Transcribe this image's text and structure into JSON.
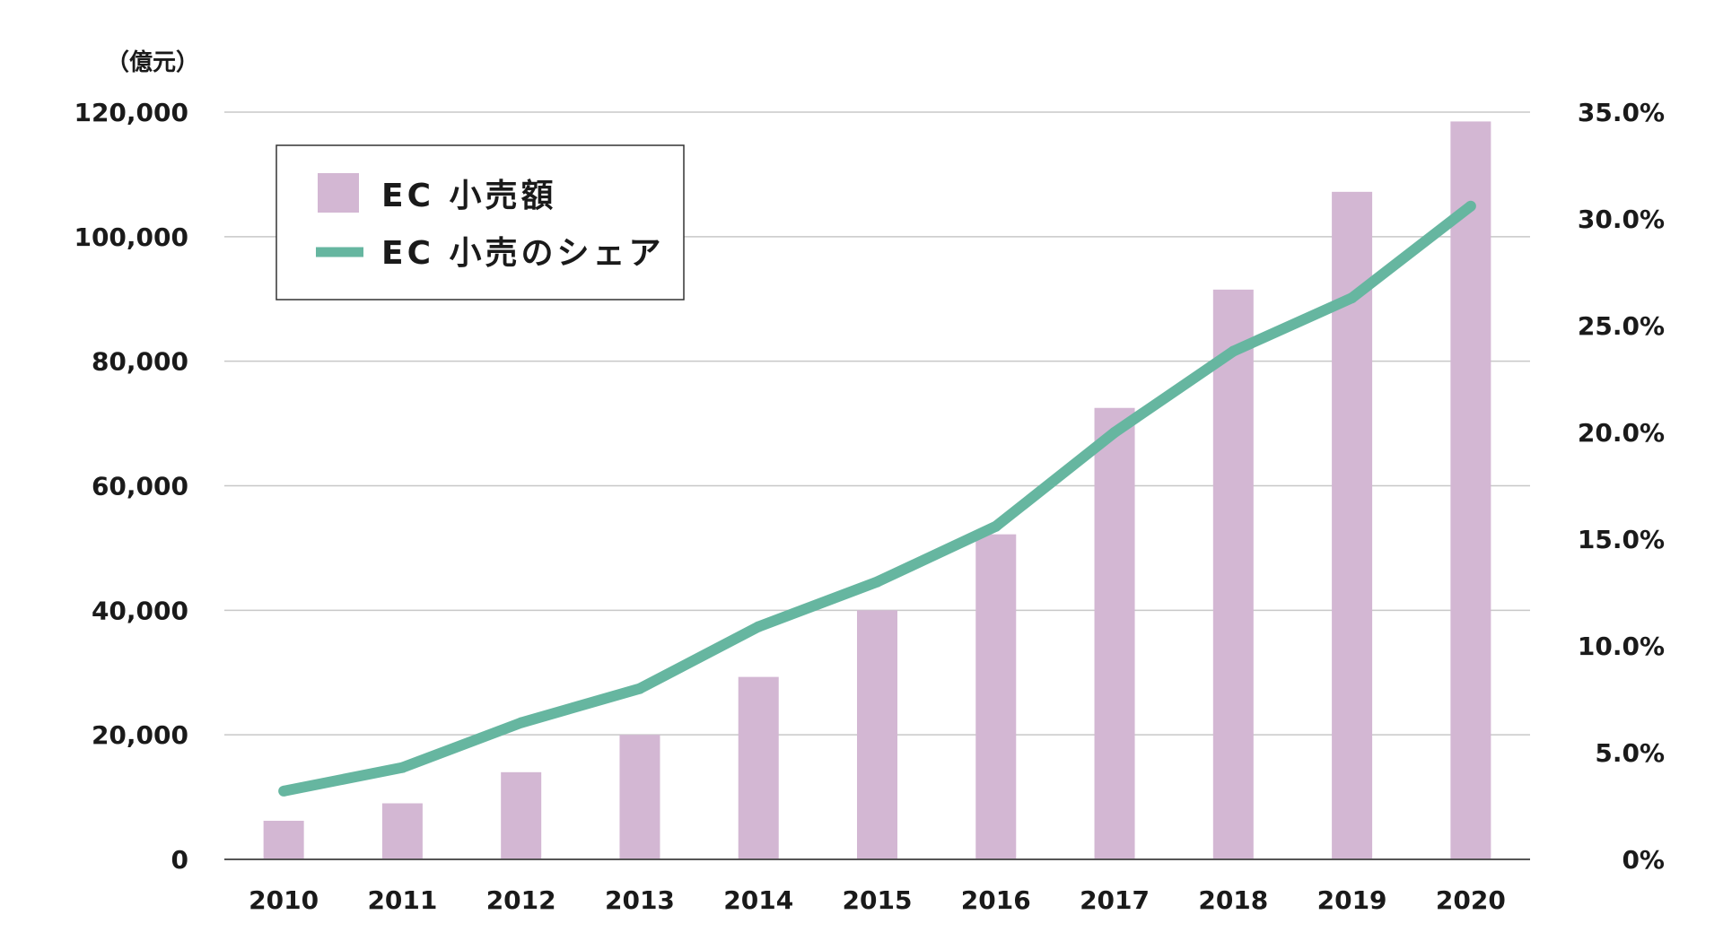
{
  "chart_data": {
    "type": "bar",
    "title": "",
    "xlabel": "",
    "ylabel_left_unit": "（億元）",
    "categories": [
      "2010",
      "2011",
      "2012",
      "2013",
      "2014",
      "2015",
      "2016",
      "2017",
      "2018",
      "2019",
      "2020"
    ],
    "series": [
      {
        "name": "EC 小売額",
        "type": "bar",
        "axis": "left",
        "values": [
          6200,
          9000,
          14000,
          20000,
          29300,
          40000,
          52200,
          72500,
          91500,
          107200,
          118500
        ]
      },
      {
        "name": "EC 小売のシェア",
        "type": "line",
        "axis": "right",
        "values": [
          3.2,
          4.3,
          6.4,
          8.0,
          10.9,
          13.0,
          15.6,
          20.0,
          23.8,
          26.3,
          30.6
        ]
      }
    ],
    "y_left": {
      "min": 0,
      "max": 120000,
      "ticks": [
        "0",
        "20,000",
        "40,000",
        "60,000",
        "80,000",
        "100,000",
        "120,000"
      ]
    },
    "y_right": {
      "min": 0,
      "max": 35,
      "ticks": [
        "0%",
        "5.0%",
        "10.0%",
        "15.0%",
        "20.0%",
        "25.0%",
        "30.0%",
        "35.0%"
      ]
    },
    "grid": true,
    "legend_placement": "top-left",
    "colors": {
      "bar": "#d3b7d3",
      "line": "#66b6a0",
      "grid": "#c8c8c8",
      "axis": "#555555"
    }
  }
}
